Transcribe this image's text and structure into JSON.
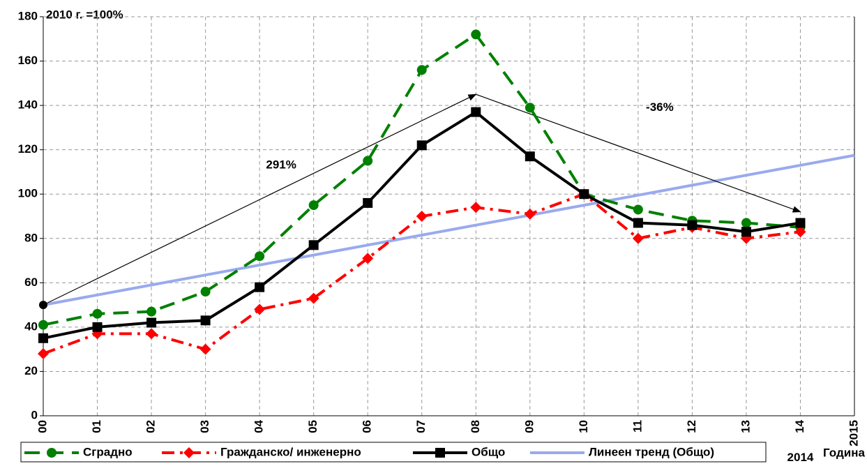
{
  "chart_data": {
    "type": "line",
    "title": "2010 г. =100%",
    "x_label": "Година",
    "categories": [
      "00",
      "01",
      "02",
      "03",
      "04",
      "05",
      "06",
      "07",
      "08",
      "09",
      "10",
      "11",
      "12",
      "13",
      "14",
      "2015"
    ],
    "series": [
      {
        "name": "Сградно",
        "color": "#008000",
        "marker": "circle",
        "dash": "long",
        "values": [
          41,
          46,
          47,
          56,
          72,
          95,
          115,
          156,
          172,
          139,
          100,
          93,
          88,
          87,
          85,
          null
        ]
      },
      {
        "name": "Гражданско/ инженерно",
        "color": "#ff0000",
        "marker": "diamond",
        "dash": "dashdot",
        "values": [
          28,
          37,
          37,
          30,
          48,
          53,
          71,
          90,
          94,
          91,
          100,
          80,
          85,
          80,
          83,
          null
        ]
      },
      {
        "name": "Общо",
        "color": "#000000",
        "marker": "square",
        "dash": "solid",
        "values": [
          35,
          40,
          42,
          43,
          58,
          77,
          96,
          122,
          137,
          117,
          100,
          87,
          86,
          83,
          87,
          null
        ]
      },
      {
        "name": "Линеен тренд (Общо)",
        "color": "#99aaee",
        "marker": "none",
        "dash": "solid",
        "values": [
          50,
          54.5,
          59,
          63.5,
          68,
          72.5,
          77,
          81.5,
          86,
          90.5,
          95,
          99.5,
          104,
          108.5,
          113,
          117.5
        ]
      }
    ],
    "arrows": {
      "x": [
        0,
        8,
        14
      ],
      "y": [
        50,
        145,
        92
      ]
    },
    "annotations": [
      {
        "text": "291%",
        "x": 4.4,
        "y": 113
      },
      {
        "text": "-36%",
        "x": 11.4,
        "y": 139
      },
      {
        "text": "2014",
        "x": 14,
        "y": -19
      }
    ],
    "ylim": [
      0,
      180
    ],
    "yticks": [
      0,
      20,
      40,
      60,
      80,
      100,
      120,
      140,
      160,
      180
    ],
    "grid": true
  }
}
